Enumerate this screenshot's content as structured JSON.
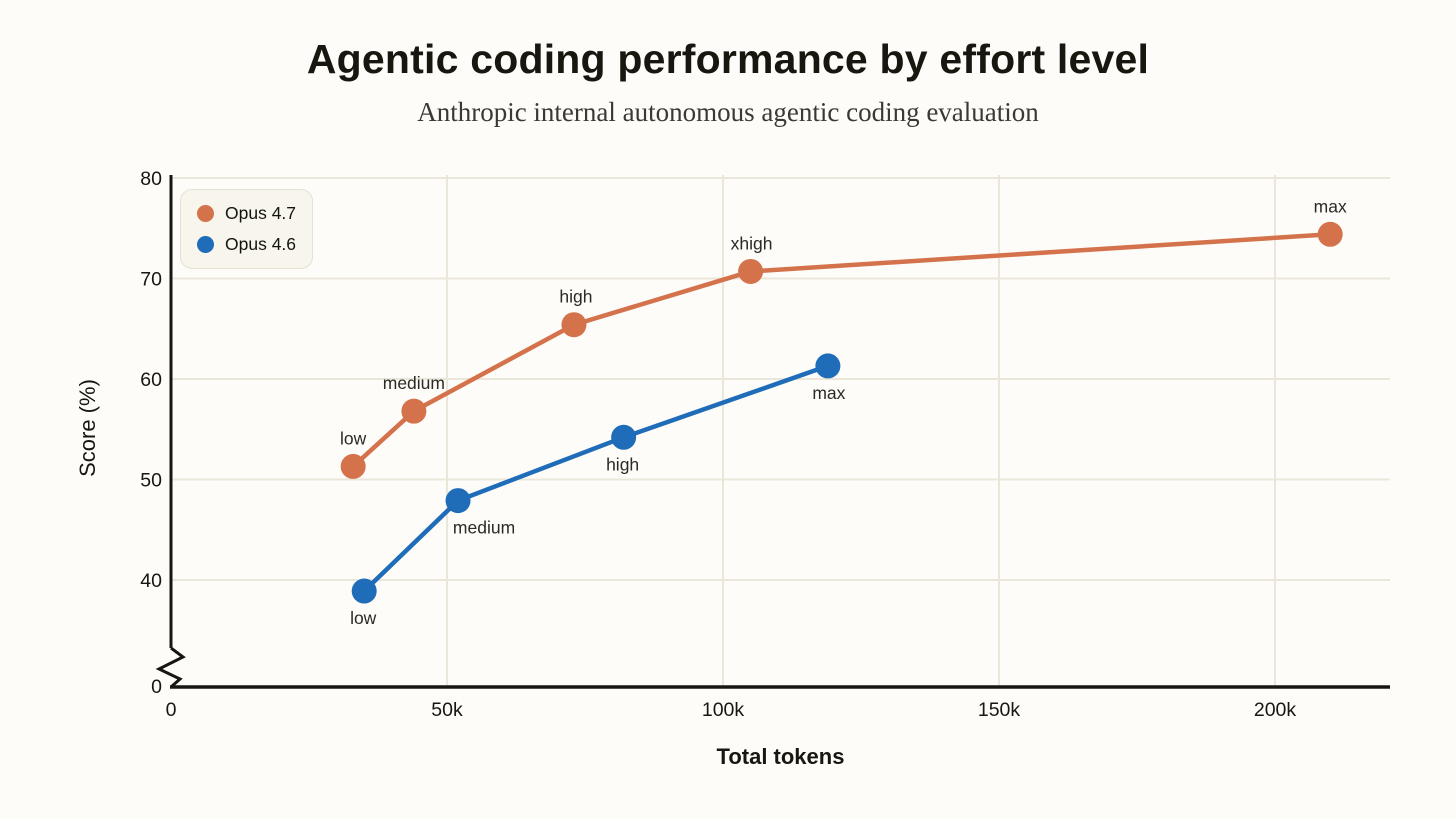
{
  "chart_data": {
    "type": "line",
    "title": "Agentic coding performance by effort level",
    "subtitle": "Anthropic internal autonomous agentic coding evaluation",
    "xlabel": "Total tokens",
    "ylabel": "Score (%)",
    "xlim": [
      0,
      220000
    ],
    "ylim": [
      0,
      80
    ],
    "y_axis_break": true,
    "y_axis_break_note": "axis broken between 0 and ~37",
    "grid": true,
    "legend_position": "top-left",
    "x_ticks": [
      {
        "value": 0,
        "label": "0"
      },
      {
        "value": 50000,
        "label": "50k"
      },
      {
        "value": 100000,
        "label": "100k"
      },
      {
        "value": 150000,
        "label": "150k"
      },
      {
        "value": 200000,
        "label": "200k"
      }
    ],
    "y_ticks": [
      {
        "value": 80,
        "label": "80"
      },
      {
        "value": 70,
        "label": "70"
      },
      {
        "value": 60,
        "label": "60"
      },
      {
        "value": 50,
        "label": "50"
      },
      {
        "value": 40,
        "label": "40"
      }
    ],
    "y_origin_label": "0",
    "series": [
      {
        "name": "Opus 4.7",
        "color": "#D4724C",
        "points": [
          {
            "x": 33000,
            "y": 51.3,
            "label": "low",
            "label_pos": "above",
            "label_dx": 0
          },
          {
            "x": 44000,
            "y": 56.8,
            "label": "medium",
            "label_pos": "above",
            "label_dx": 0
          },
          {
            "x": 73000,
            "y": 65.4,
            "label": "high",
            "label_pos": "above",
            "label_dx": 2
          },
          {
            "x": 105000,
            "y": 70.7,
            "label": "xhigh",
            "label_pos": "above",
            "label_dx": 1
          },
          {
            "x": 210000,
            "y": 74.4,
            "label": "max",
            "label_pos": "above",
            "label_dx": 0
          }
        ]
      },
      {
        "name": "Opus 4.6",
        "color": "#1F6CB8",
        "points": [
          {
            "x": 35000,
            "y": 38.9,
            "label": "low",
            "label_pos": "below",
            "label_dx": -1
          },
          {
            "x": 52000,
            "y": 47.9,
            "label": "medium",
            "label_pos": "below",
            "label_dx": 26
          },
          {
            "x": 82000,
            "y": 54.2,
            "label": "high",
            "label_pos": "below",
            "label_dx": -1
          },
          {
            "x": 119000,
            "y": 61.3,
            "label": "max",
            "label_pos": "below",
            "label_dx": 1
          }
        ]
      }
    ],
    "colors": {
      "background": "#FDFCF9",
      "grid": "#EAE7DA",
      "axis": "#161613",
      "tick_text": "#161613",
      "data_label": "#2B2A25",
      "legend_bg": "#F7F5EC",
      "legend_border": "#E4E1D3"
    }
  }
}
